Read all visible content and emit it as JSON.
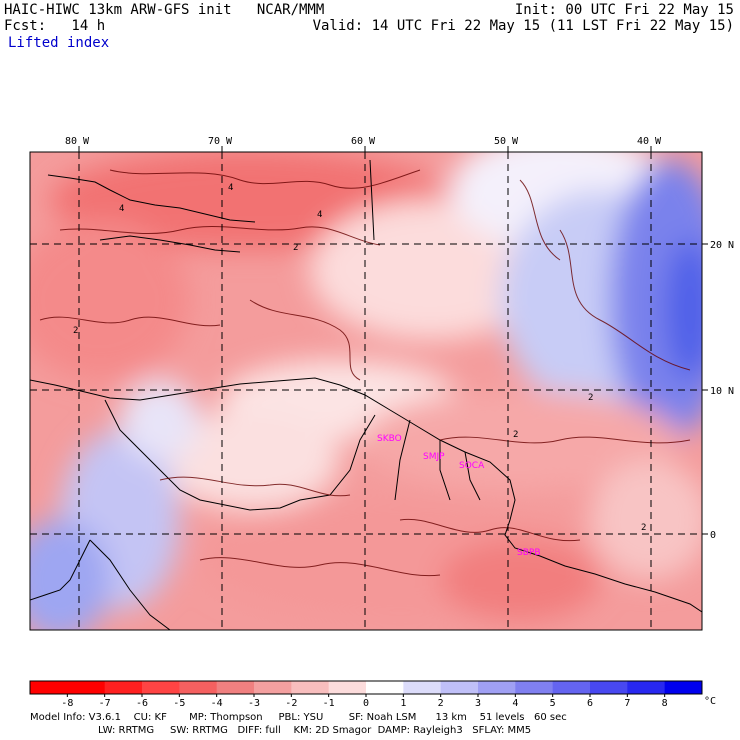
{
  "header": {
    "line1_left": "HAIC-HIWC 13km ARW-GFS init   NCAR/MMM",
    "line1_right": "Init: 00 UTC Fri 22 May 15",
    "line2_left": "Fcst:   14 h",
    "line2_right": "Valid: 14 UTC Fri 22 May 15 (11 LST Fri 22 May 15)",
    "field": "Lifted index"
  },
  "axes": {
    "lon_labels": [
      "80 W",
      "70 W",
      "60 W",
      "50 W",
      "40 W"
    ],
    "lat_labels": [
      "20 N",
      "10 N",
      "0"
    ]
  },
  "stations": [
    "SKBO",
    "SMJP",
    "SOCA",
    "SBPB"
  ],
  "contour_labels": [
    "4",
    "4",
    "4",
    "2",
    "2",
    "2",
    "2",
    "2"
  ],
  "colorbar": {
    "ticks": [
      "-8",
      "-7",
      "-6",
      "-5",
      "-4",
      "-3",
      "-2",
      "-1",
      "0",
      "1",
      "2",
      "3",
      "4",
      "5",
      "6",
      "7",
      "8"
    ],
    "unit": "°C",
    "colors": [
      "#ff0000",
      "#ff2020",
      "#ff4444",
      "#f56060",
      "#f08080",
      "#f4a0a0",
      "#f8bebe",
      "#fcdcdc",
      "#ffffff",
      "#dcdcfa",
      "#c0c0f8",
      "#a0a0f4",
      "#8080f0",
      "#6464f0",
      "#4848f0",
      "#2828f0",
      "#0000ee"
    ]
  },
  "model_info": {
    "line1": "Model Info: V3.6.1    CU: KF       MP: Thompson     PBL: YSU        SF: Noah LSM      13 km    51 levels   60 sec",
    "line2": "LW: RRTMG     SW: RRTMG   DIFF: full    KM: 2D Smagor  DAMP: Rayleigh3   SFLAY: MM5"
  }
}
